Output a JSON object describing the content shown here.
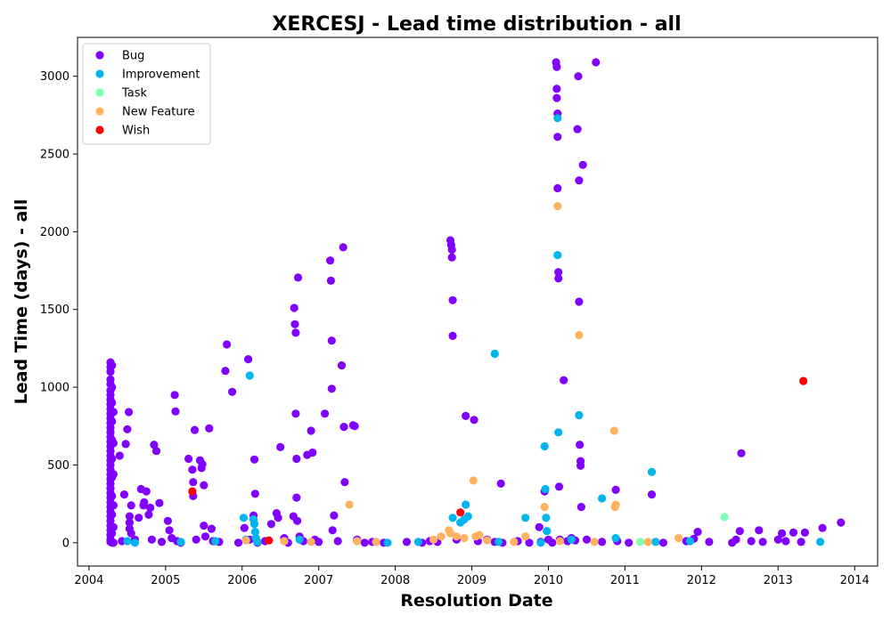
{
  "chart_data": {
    "type": "scatter",
    "title": "XERCESJ - Lead time distribution - all",
    "xlabel": "Resolution Date",
    "ylabel": "Lead Time (days) - all",
    "xlim": [
      2003.85,
      2014.3
    ],
    "ylim": [
      -150,
      3250
    ],
    "xticks": [
      2004,
      2005,
      2006,
      2007,
      2008,
      2009,
      2010,
      2011,
      2012,
      2013,
      2014
    ],
    "yticks": [
      0,
      500,
      1000,
      1500,
      2000,
      2500,
      3000
    ],
    "grid": false,
    "legend_position": "top-left",
    "series": [
      {
        "name": "Bug",
        "color": "#8000ff",
        "points": [
          [
            2004.28,
            1160
          ],
          [
            2004.28,
            1130
          ],
          [
            2004.28,
            1100
          ],
          [
            2004.28,
            1050
          ],
          [
            2004.28,
            1020
          ],
          [
            2004.28,
            980
          ],
          [
            2004.28,
            950
          ],
          [
            2004.28,
            920
          ],
          [
            2004.28,
            890
          ],
          [
            2004.28,
            860
          ],
          [
            2004.28,
            830
          ],
          [
            2004.28,
            800
          ],
          [
            2004.28,
            770
          ],
          [
            2004.28,
            740
          ],
          [
            2004.28,
            710
          ],
          [
            2004.28,
            680
          ],
          [
            2004.28,
            650
          ],
          [
            2004.28,
            620
          ],
          [
            2004.28,
            590
          ],
          [
            2004.28,
            560
          ],
          [
            2004.28,
            530
          ],
          [
            2004.28,
            500
          ],
          [
            2004.28,
            470
          ],
          [
            2004.28,
            440
          ],
          [
            2004.28,
            410
          ],
          [
            2004.28,
            380
          ],
          [
            2004.28,
            350
          ],
          [
            2004.28,
            320
          ],
          [
            2004.28,
            290
          ],
          [
            2004.28,
            260
          ],
          [
            2004.28,
            230
          ],
          [
            2004.28,
            200
          ],
          [
            2004.28,
            170
          ],
          [
            2004.28,
            140
          ],
          [
            2004.28,
            110
          ],
          [
            2004.28,
            80
          ],
          [
            2004.28,
            50
          ],
          [
            2004.28,
            20
          ],
          [
            2004.28,
            5
          ],
          [
            2004.3,
            1140
          ],
          [
            2004.3,
            1000
          ],
          [
            2004.3,
            900
          ],
          [
            2004.3,
            780
          ],
          [
            2004.3,
            660
          ],
          [
            2004.3,
            540
          ],
          [
            2004.3,
            420
          ],
          [
            2004.3,
            300
          ],
          [
            2004.3,
            180
          ],
          [
            2004.3,
            60
          ],
          [
            2004.3,
            0
          ],
          [
            2004.32,
            840
          ],
          [
            2004.32,
            640
          ],
          [
            2004.32,
            440
          ],
          [
            2004.32,
            240
          ],
          [
            2004.32,
            100
          ],
          [
            2004.32,
            0
          ],
          [
            2004.4,
            560
          ],
          [
            2004.43,
            10
          ],
          [
            2004.46,
            310
          ],
          [
            2004.48,
            635
          ],
          [
            2004.5,
            730
          ],
          [
            2004.52,
            840
          ],
          [
            2004.53,
            170
          ],
          [
            2004.53,
            130
          ],
          [
            2004.53,
            90
          ],
          [
            2004.55,
            240
          ],
          [
            2004.55,
            60
          ],
          [
            2004.6,
            20
          ],
          [
            2004.65,
            160
          ],
          [
            2004.68,
            345
          ],
          [
            2004.71,
            240
          ],
          [
            2004.72,
            260
          ],
          [
            2004.75,
            330
          ],
          [
            2004.78,
            180
          ],
          [
            2004.8,
            225
          ],
          [
            2004.82,
            20
          ],
          [
            2004.85,
            630
          ],
          [
            2004.88,
            590
          ],
          [
            2004.92,
            255
          ],
          [
            2004.95,
            5
          ],
          [
            2005.03,
            140
          ],
          [
            2005.05,
            80
          ],
          [
            2005.08,
            30
          ],
          [
            2005.12,
            950
          ],
          [
            2005.13,
            845
          ],
          [
            2005.15,
            10
          ],
          [
            2005.2,
            0
          ],
          [
            2005.3,
            540
          ],
          [
            2005.35,
            470
          ],
          [
            2005.36,
            390
          ],
          [
            2005.36,
            300
          ],
          [
            2005.38,
            725
          ],
          [
            2005.4,
            20
          ],
          [
            2005.45,
            530
          ],
          [
            2005.47,
            480
          ],
          [
            2005.48,
            505
          ],
          [
            2005.5,
            370
          ],
          [
            2005.5,
            110
          ],
          [
            2005.52,
            40
          ],
          [
            2005.57,
            735
          ],
          [
            2005.6,
            90
          ],
          [
            2005.62,
            10
          ],
          [
            2005.7,
            5
          ],
          [
            2005.78,
            1105
          ],
          [
            2005.8,
            1275
          ],
          [
            2005.87,
            970
          ],
          [
            2005.95,
            0
          ],
          [
            2006.03,
            95
          ],
          [
            2006.08,
            1180
          ],
          [
            2006.1,
            20
          ],
          [
            2006.15,
            175
          ],
          [
            2006.16,
            535
          ],
          [
            2006.17,
            315
          ],
          [
            2006.2,
            0
          ],
          [
            2006.3,
            10
          ],
          [
            2006.38,
            120
          ],
          [
            2006.45,
            190
          ],
          [
            2006.47,
            160
          ],
          [
            2006.5,
            615
          ],
          [
            2006.55,
            30
          ],
          [
            2006.6,
            0
          ],
          [
            2006.67,
            170
          ],
          [
            2006.68,
            1510
          ],
          [
            2006.69,
            1405
          ],
          [
            2006.7,
            1350
          ],
          [
            2006.7,
            830
          ],
          [
            2006.71,
            540
          ],
          [
            2006.71,
            290
          ],
          [
            2006.72,
            140
          ],
          [
            2006.73,
            1705
          ],
          [
            2006.75,
            40
          ],
          [
            2006.8,
            10
          ],
          [
            2006.85,
            565
          ],
          [
            2006.9,
            720
          ],
          [
            2006.92,
            580
          ],
          [
            2006.95,
            20
          ],
          [
            2007.0,
            5
          ],
          [
            2007.08,
            830
          ],
          [
            2007.15,
            1815
          ],
          [
            2007.16,
            1685
          ],
          [
            2007.17,
            1300
          ],
          [
            2007.17,
            990
          ],
          [
            2007.18,
            80
          ],
          [
            2007.2,
            175
          ],
          [
            2007.25,
            10
          ],
          [
            2007.3,
            1140
          ],
          [
            2007.32,
            1900
          ],
          [
            2007.33,
            745
          ],
          [
            2007.34,
            390
          ],
          [
            2007.45,
            755
          ],
          [
            2007.47,
            750
          ],
          [
            2007.5,
            20
          ],
          [
            2007.6,
            0
          ],
          [
            2007.7,
            5
          ],
          [
            2007.85,
            0
          ],
          [
            2008.15,
            5
          ],
          [
            2008.35,
            0
          ],
          [
            2008.45,
            10
          ],
          [
            2008.55,
            5
          ],
          [
            2008.72,
            1945
          ],
          [
            2008.73,
            1915
          ],
          [
            2008.74,
            1885
          ],
          [
            2008.74,
            1835
          ],
          [
            2008.75,
            1560
          ],
          [
            2008.75,
            1330
          ],
          [
            2008.8,
            20
          ],
          [
            2008.92,
            815
          ],
          [
            2009.03,
            790
          ],
          [
            2009.08,
            10
          ],
          [
            2009.2,
            20
          ],
          [
            2009.3,
            5
          ],
          [
            2009.38,
            380
          ],
          [
            2009.4,
            0
          ],
          [
            2009.6,
            10
          ],
          [
            2009.75,
            0
          ],
          [
            2009.88,
            100
          ],
          [
            2009.9,
            5
          ],
          [
            2009.95,
            330
          ],
          [
            2010.0,
            20
          ],
          [
            2010.05,
            0
          ],
          [
            2010.1,
            3090
          ],
          [
            2010.11,
            3060
          ],
          [
            2010.11,
            2920
          ],
          [
            2010.11,
            2860
          ],
          [
            2010.12,
            2760
          ],
          [
            2010.12,
            2610
          ],
          [
            2010.12,
            2280
          ],
          [
            2010.13,
            1740
          ],
          [
            2010.13,
            1700
          ],
          [
            2010.14,
            360
          ],
          [
            2010.15,
            20
          ],
          [
            2010.2,
            1045
          ],
          [
            2010.25,
            10
          ],
          [
            2010.3,
            30
          ],
          [
            2010.35,
            15
          ],
          [
            2010.38,
            2660
          ],
          [
            2010.39,
            3000
          ],
          [
            2010.4,
            1550
          ],
          [
            2010.4,
            2330
          ],
          [
            2010.41,
            630
          ],
          [
            2010.42,
            525
          ],
          [
            2010.42,
            495
          ],
          [
            2010.43,
            230
          ],
          [
            2010.45,
            2430
          ],
          [
            2010.5,
            20
          ],
          [
            2010.62,
            3090
          ],
          [
            2010.7,
            5
          ],
          [
            2010.88,
            340
          ],
          [
            2010.9,
            10
          ],
          [
            2011.05,
            0
          ],
          [
            2011.35,
            310
          ],
          [
            2011.5,
            0
          ],
          [
            2011.8,
            10
          ],
          [
            2011.9,
            25
          ],
          [
            2011.95,
            70
          ],
          [
            2012.1,
            5
          ],
          [
            2012.4,
            0
          ],
          [
            2012.45,
            20
          ],
          [
            2012.5,
            75
          ],
          [
            2012.52,
            575
          ],
          [
            2012.65,
            10
          ],
          [
            2012.75,
            80
          ],
          [
            2012.8,
            5
          ],
          [
            2013.0,
            20
          ],
          [
            2013.05,
            60
          ],
          [
            2013.1,
            10
          ],
          [
            2013.2,
            65
          ],
          [
            2013.3,
            5
          ],
          [
            2013.35,
            65
          ],
          [
            2013.58,
            95
          ],
          [
            2013.82,
            130
          ]
        ]
      },
      {
        "name": "Improvement",
        "color": "#00b5eb",
        "points": [
          [
            2004.5,
            10
          ],
          [
            2004.6,
            0
          ],
          [
            2005.2,
            5
          ],
          [
            2005.65,
            10
          ],
          [
            2006.02,
            160
          ],
          [
            2006.05,
            20
          ],
          [
            2006.1,
            1075
          ],
          [
            2006.15,
            150
          ],
          [
            2006.16,
            120
          ],
          [
            2006.17,
            70
          ],
          [
            2006.18,
            30
          ],
          [
            2006.2,
            5
          ],
          [
            2006.75,
            20
          ],
          [
            2007.5,
            10
          ],
          [
            2007.9,
            0
          ],
          [
            2008.3,
            5
          ],
          [
            2008.75,
            160
          ],
          [
            2008.85,
            130
          ],
          [
            2008.9,
            150
          ],
          [
            2008.92,
            245
          ],
          [
            2008.95,
            170
          ],
          [
            2009.3,
            1215
          ],
          [
            2009.35,
            5
          ],
          [
            2009.7,
            160
          ],
          [
            2009.9,
            0
          ],
          [
            2009.95,
            620
          ],
          [
            2009.96,
            345
          ],
          [
            2009.97,
            160
          ],
          [
            2009.98,
            75
          ],
          [
            2010.12,
            2730
          ],
          [
            2010.12,
            1850
          ],
          [
            2010.13,
            710
          ],
          [
            2010.3,
            20
          ],
          [
            2010.4,
            820
          ],
          [
            2010.7,
            285
          ],
          [
            2010.88,
            30
          ],
          [
            2011.35,
            455
          ],
          [
            2011.4,
            5
          ],
          [
            2011.85,
            10
          ],
          [
            2013.55,
            5
          ]
        ]
      },
      {
        "name": "Task",
        "color": "#80ffb4",
        "points": [
          [
            2011.2,
            5
          ],
          [
            2012.3,
            165
          ]
        ]
      },
      {
        "name": "New Feature",
        "color": "#ffb360",
        "points": [
          [
            2006.05,
            15
          ],
          [
            2006.55,
            10
          ],
          [
            2006.9,
            5
          ],
          [
            2007.4,
            245
          ],
          [
            2007.5,
            10
          ],
          [
            2007.75,
            5
          ],
          [
            2008.5,
            20
          ],
          [
            2008.6,
            40
          ],
          [
            2008.7,
            80
          ],
          [
            2008.72,
            60
          ],
          [
            2008.8,
            40
          ],
          [
            2008.9,
            30
          ],
          [
            2009.02,
            400
          ],
          [
            2009.05,
            40
          ],
          [
            2009.1,
            50
          ],
          [
            2009.2,
            15
          ],
          [
            2009.55,
            5
          ],
          [
            2009.7,
            40
          ],
          [
            2009.95,
            230
          ],
          [
            2010.12,
            2165
          ],
          [
            2010.15,
            10
          ],
          [
            2010.4,
            1335
          ],
          [
            2010.6,
            5
          ],
          [
            2010.86,
            720
          ],
          [
            2010.87,
            230
          ],
          [
            2010.88,
            245
          ],
          [
            2011.3,
            5
          ],
          [
            2011.7,
            30
          ]
        ]
      },
      {
        "name": "Wish",
        "color": "#ff0000",
        "points": [
          [
            2005.35,
            330
          ],
          [
            2006.35,
            15
          ],
          [
            2008.85,
            195
          ],
          [
            2013.33,
            1040
          ]
        ]
      }
    ]
  }
}
